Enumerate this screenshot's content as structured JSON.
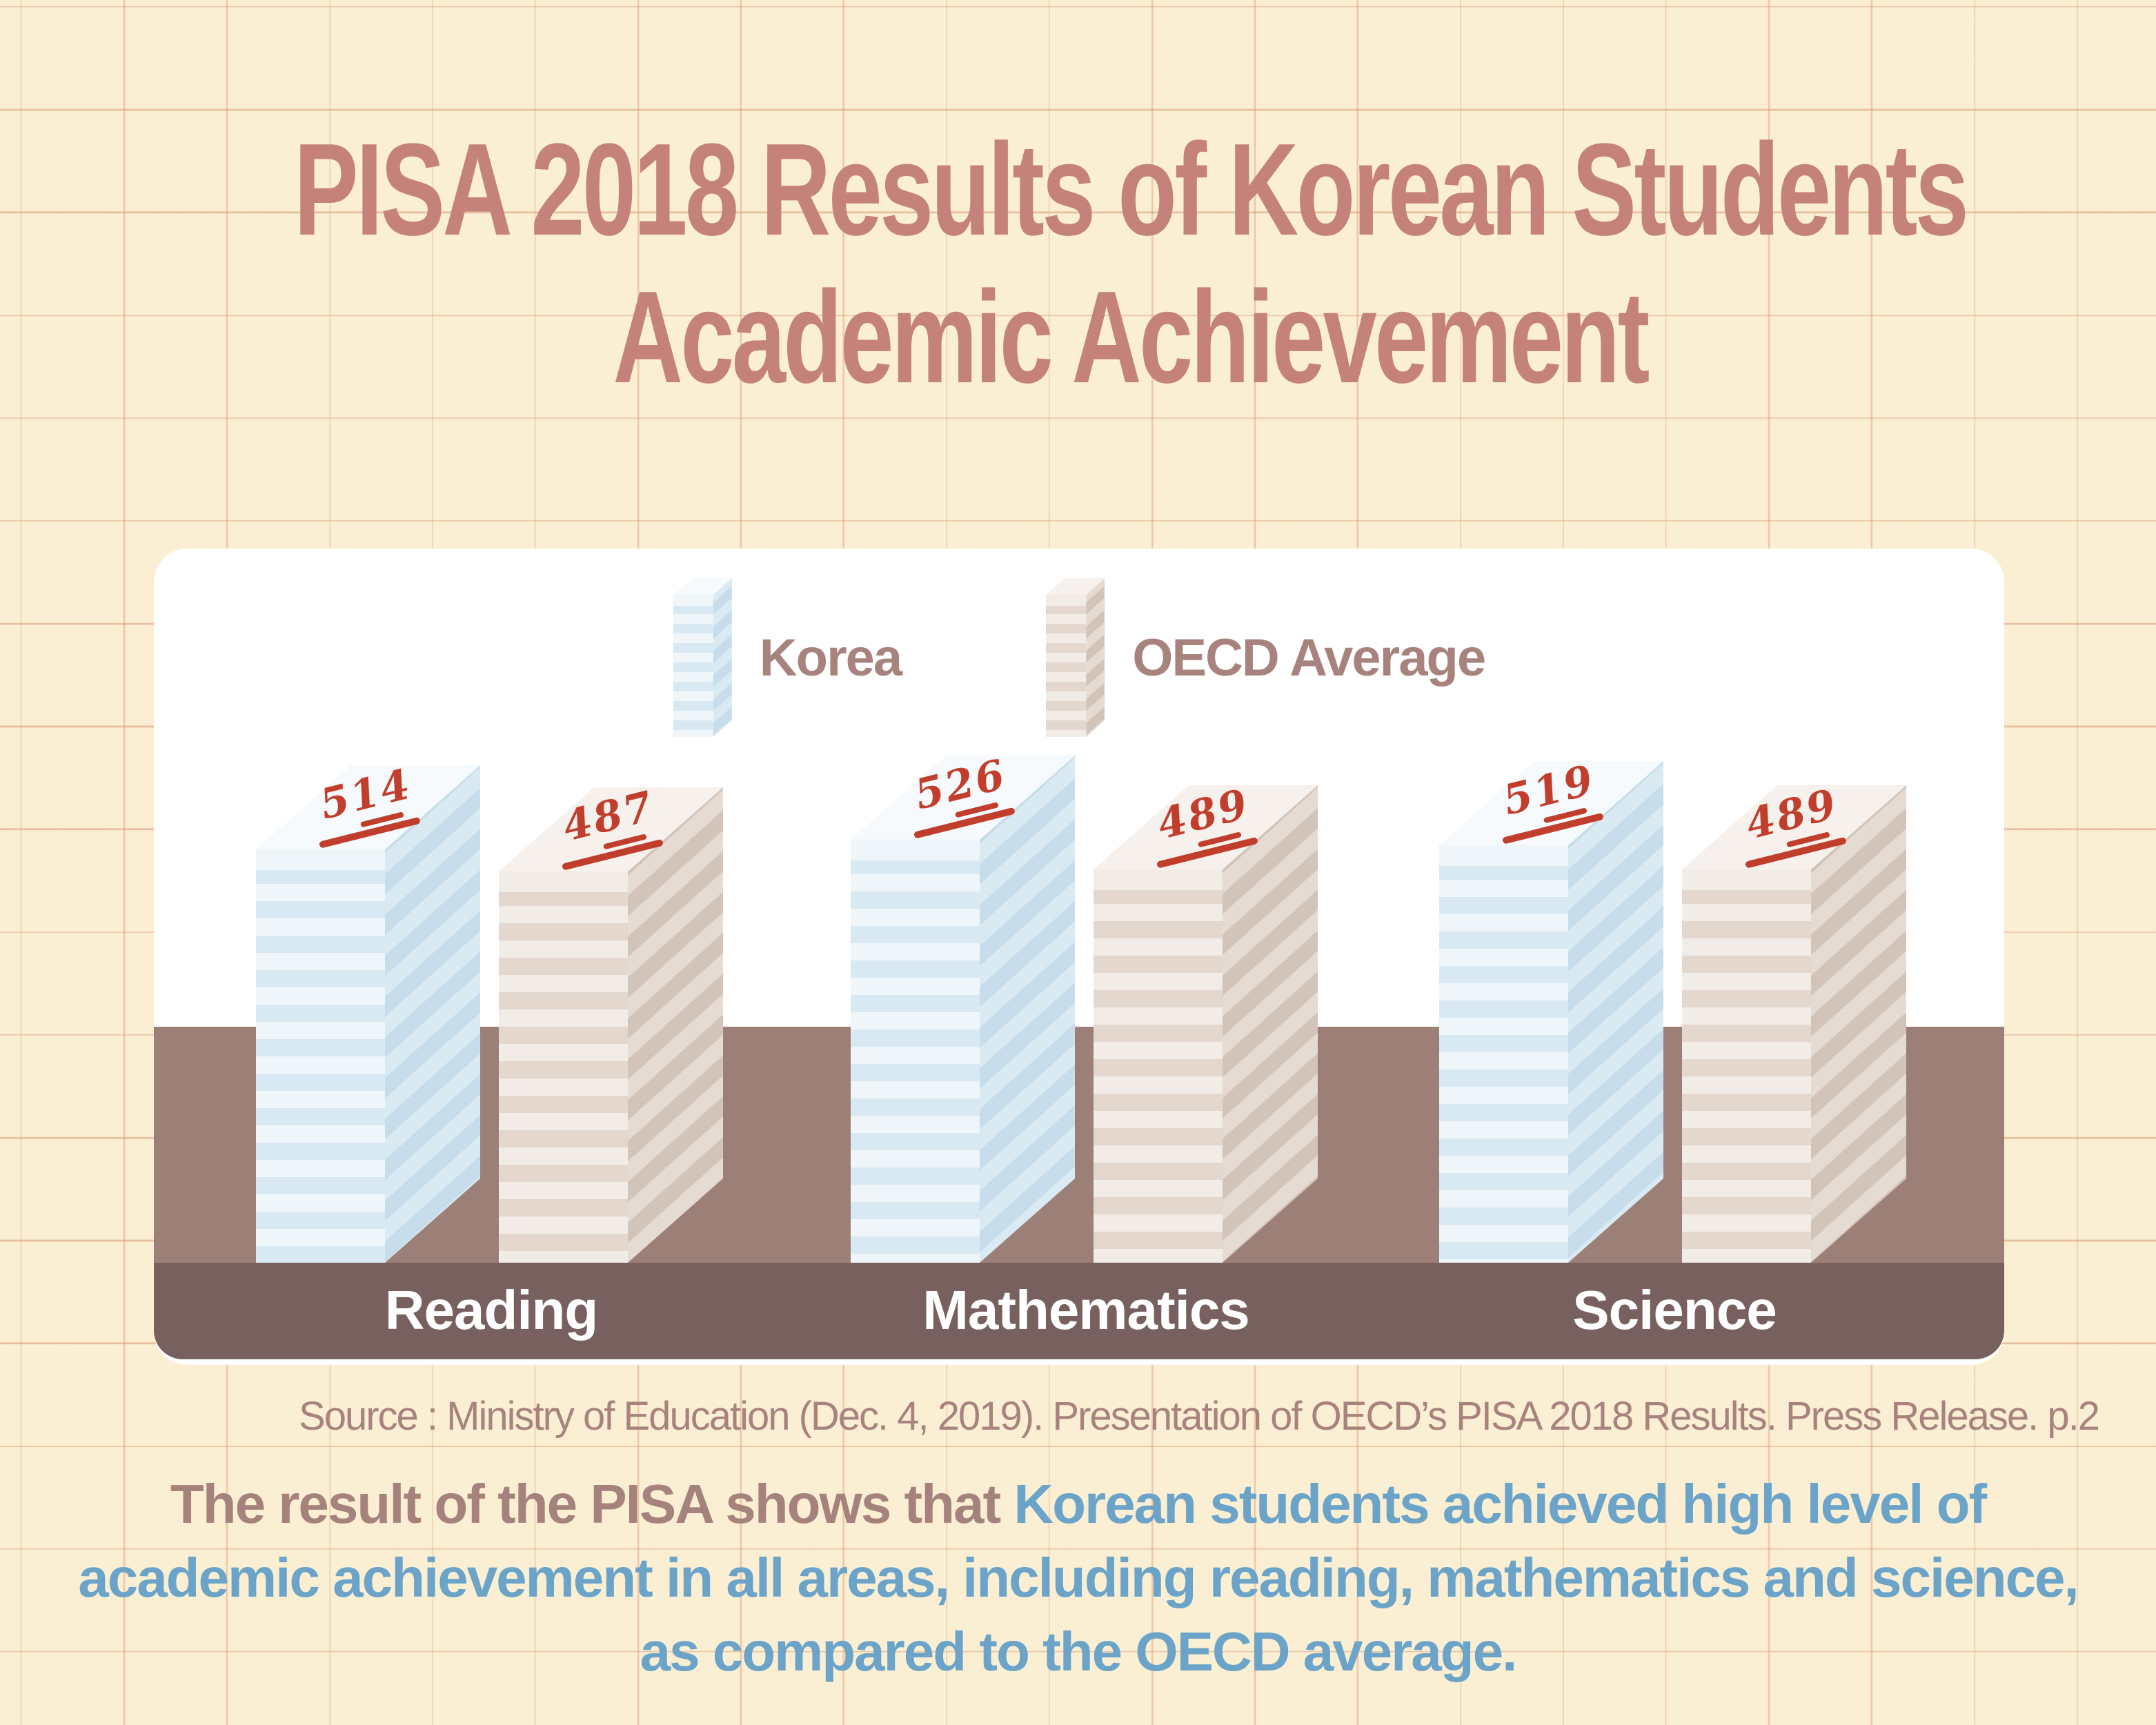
{
  "title": {
    "line1": "PISA 2018 Results of Korean Students",
    "line2": "Academic Achievement"
  },
  "legend": {
    "korea_label": "Korea",
    "oecd_label": "OECD Average"
  },
  "chart_data": {
    "type": "bar",
    "title": "PISA 2018 Results of Korean Students Academic Achievement",
    "categories": [
      "Reading",
      "Mathematics",
      "Science"
    ],
    "series": [
      {
        "name": "Korea",
        "values": [
          514,
          526,
          519
        ]
      },
      {
        "name": "OECD Average",
        "values": [
          487,
          489,
          489
        ]
      }
    ],
    "annotation_style": "handwritten red score with double underline on top of each paper stack",
    "legend_position": "top-center",
    "grid": false,
    "ylim": [
      0,
      560
    ]
  },
  "source": "Source : Ministry of Education (Dec. 4, 2019). Presentation of OECD’s PISA 2018 Results. Press Release. p.2",
  "conclusion": {
    "line1_prefix": "The result of the PISA shows that ",
    "line1_highlight": "Korean students achieved high level of",
    "line2": "academic achievement in all areas, including reading, mathematics and science,",
    "line3": "as compared to the OECD average."
  },
  "colors": {
    "background": "#FBEFD3",
    "grid_line": "#DB926E",
    "title": "#C5827B",
    "card": "#FFFFFF",
    "floor": "#9C8078",
    "footer_strip": "#77605D",
    "category_label": "#FFFFFF",
    "legend_label": "#A8837E",
    "source_text": "#A8837E",
    "conclusion_mauve": "#A6827D",
    "conclusion_blue": "#6BA4C8",
    "score_ink": "#C13E2C",
    "korea_stack": {
      "top": "#F6FAFD",
      "front": [
        "#EFF6FA",
        "#D8E9F3"
      ],
      "side": [
        "#D9EAF3",
        "#C7DDEB"
      ]
    },
    "oecd_stack": {
      "top": "#F6F1EC",
      "front": [
        "#F2ECE6",
        "#E3D7CE"
      ],
      "side": [
        "#E6DBD3",
        "#D3C4BA"
      ]
    }
  }
}
